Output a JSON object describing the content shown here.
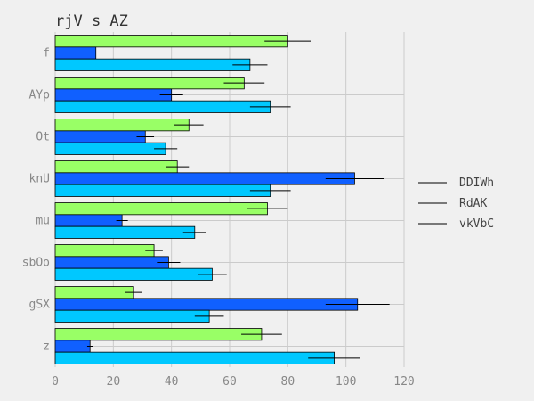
{
  "chart_data": {
    "type": "bar",
    "orientation": "horizontal",
    "title": "rjV s AZ",
    "xlabel": "",
    "ylabel": "",
    "xlim": [
      0,
      120
    ],
    "xticks": [
      0,
      20,
      40,
      60,
      80,
      100,
      120
    ],
    "grid": true,
    "legend_position": "right",
    "categories": [
      "f",
      "AYp",
      "Ot",
      "knU",
      "mu",
      "sbOo",
      "gSX",
      "z"
    ],
    "series": [
      {
        "name": "DDIWh",
        "color": "#99ff66",
        "values": [
          80,
          65,
          46,
          42,
          73,
          34,
          27,
          71
        ],
        "errors": [
          8,
          7,
          5,
          4,
          7,
          3,
          3,
          7
        ]
      },
      {
        "name": "RdAK",
        "color": "#1060ff",
        "values": [
          14,
          40,
          31,
          103,
          23,
          39,
          104,
          12
        ],
        "errors": [
          1,
          4,
          3,
          10,
          2,
          4,
          11,
          1
        ]
      },
      {
        "name": "vkVbC",
        "color": "#00c8ff",
        "values": [
          67,
          74,
          38,
          74,
          48,
          54,
          53,
          96
        ],
        "errors": [
          6,
          7,
          4,
          7,
          4,
          5,
          5,
          9
        ]
      }
    ]
  }
}
